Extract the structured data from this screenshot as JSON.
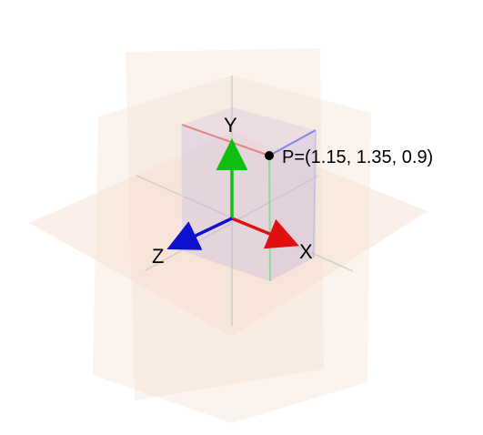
{
  "axes": {
    "x_label": "X",
    "y_label": "Y",
    "z_label": "Z"
  },
  "point": {
    "label": "P=(1.15, 1.35, 0.9)",
    "x": 1.15,
    "y": 1.35,
    "z": 0.9
  },
  "colors": {
    "x_axis": "#e01010",
    "y_axis": "#10c010",
    "z_axis": "#1010d0",
    "planes": "#f3dccb",
    "box": "#c8b8e0",
    "grid": "#c8c8c8"
  }
}
